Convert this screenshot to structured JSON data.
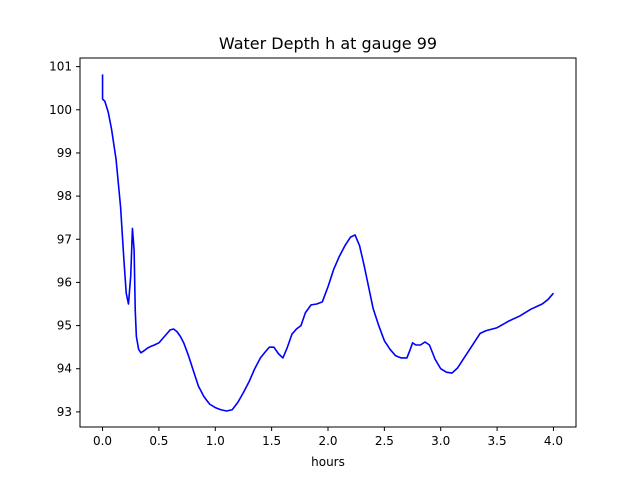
{
  "chart_data": {
    "type": "line",
    "title": "Water Depth h at gauge 99",
    "xlabel": "hours",
    "ylabel": "",
    "xlim": [
      -0.2,
      4.2
    ],
    "ylim": [
      92.65,
      101.2
    ],
    "xticks": [
      0.0,
      0.5,
      1.0,
      1.5,
      2.0,
      2.5,
      3.0,
      3.5,
      4.0
    ],
    "xtick_labels": [
      "0.0",
      "0.5",
      "1.0",
      "1.5",
      "2.0",
      "2.5",
      "3.0",
      "3.5",
      "4.0"
    ],
    "yticks": [
      93,
      94,
      95,
      96,
      97,
      98,
      99,
      100,
      101
    ],
    "ytick_labels": [
      "93",
      "94",
      "95",
      "96",
      "97",
      "98",
      "99",
      "100",
      "101"
    ],
    "grid": false,
    "legend": "none",
    "series": [
      {
        "color": "#0000ff",
        "x": [
          0.0,
          0.0,
          0.0,
          0.02,
          0.05,
          0.08,
          0.12,
          0.16,
          0.19,
          0.21,
          0.23,
          0.25,
          0.265,
          0.28,
          0.29,
          0.3,
          0.31,
          0.32,
          0.34,
          0.37,
          0.4,
          0.43,
          0.46,
          0.5,
          0.55,
          0.6,
          0.63,
          0.66,
          0.69,
          0.72,
          0.76,
          0.8,
          0.85,
          0.9,
          0.95,
          1.0,
          1.05,
          1.1,
          1.15,
          1.2,
          1.25,
          1.3,
          1.35,
          1.4,
          1.44,
          1.48,
          1.52,
          1.56,
          1.6,
          1.64,
          1.68,
          1.72,
          1.76,
          1.8,
          1.85,
          1.9,
          1.95,
          2.0,
          2.05,
          2.1,
          2.15,
          2.2,
          2.24,
          2.28,
          2.32,
          2.36,
          2.4,
          2.45,
          2.5,
          2.55,
          2.6,
          2.65,
          2.7,
          2.73,
          2.75,
          2.78,
          2.82,
          2.86,
          2.9,
          2.95,
          3.0,
          3.05,
          3.1,
          3.15,
          3.2,
          3.25,
          3.3,
          3.35,
          3.4,
          3.5,
          3.6,
          3.7,
          3.8,
          3.9,
          3.95,
          4.0
        ],
        "y": [
          100.82,
          100.3,
          100.25,
          100.2,
          99.95,
          99.55,
          98.85,
          97.75,
          96.5,
          95.75,
          95.5,
          96.15,
          97.25,
          96.75,
          95.35,
          94.75,
          94.6,
          94.45,
          94.37,
          94.42,
          94.48,
          94.52,
          94.55,
          94.6,
          94.75,
          94.9,
          94.92,
          94.86,
          94.75,
          94.6,
          94.32,
          94.0,
          93.6,
          93.35,
          93.18,
          93.1,
          93.05,
          93.02,
          93.05,
          93.22,
          93.45,
          93.7,
          94.0,
          94.25,
          94.38,
          94.5,
          94.5,
          94.35,
          94.25,
          94.5,
          94.8,
          94.92,
          95.0,
          95.3,
          95.48,
          95.5,
          95.55,
          95.9,
          96.3,
          96.6,
          96.85,
          97.05,
          97.1,
          96.85,
          96.4,
          95.9,
          95.4,
          95.0,
          94.65,
          94.45,
          94.3,
          94.25,
          94.25,
          94.45,
          94.6,
          94.55,
          94.55,
          94.62,
          94.55,
          94.22,
          94.0,
          93.92,
          93.9,
          94.02,
          94.22,
          94.42,
          94.62,
          94.82,
          94.88,
          94.95,
          95.1,
          95.22,
          95.38,
          95.5,
          95.6,
          95.75
        ]
      }
    ]
  }
}
